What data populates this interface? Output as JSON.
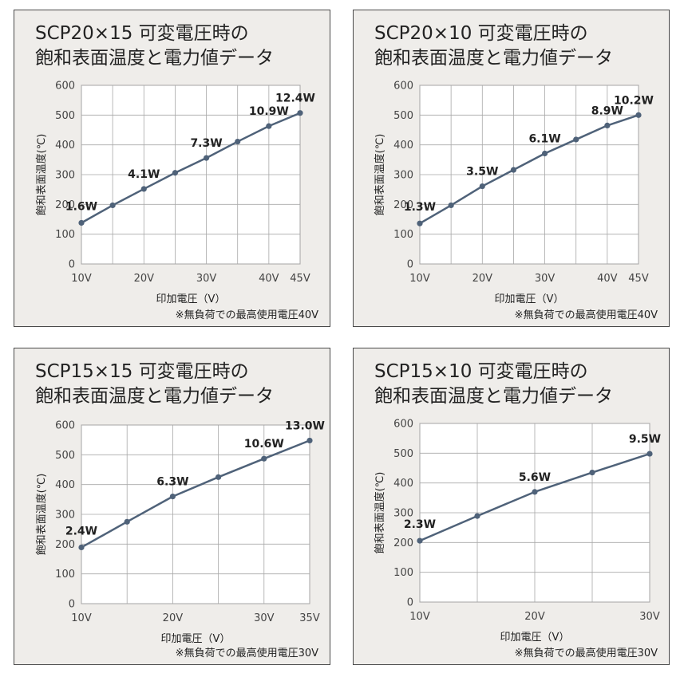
{
  "chart_data": [
    {
      "type": "line",
      "title": "SCP20×15 可変電圧時の\n飽和表面温度と電力値データ",
      "xlabel": "印加電圧（V）",
      "ylabel": "飽和表面温度(℃)",
      "note": "※無負荷での最高使用電圧40V",
      "xlim": [
        10,
        45
      ],
      "ylim": [
        0,
        600
      ],
      "xticks": [
        10,
        20,
        30,
        40,
        45
      ],
      "xtick_labels": [
        "10V",
        "20V",
        "30V",
        "40V",
        "45V"
      ],
      "yticks": [
        0,
        100,
        200,
        300,
        400,
        500,
        600
      ],
      "x": [
        10,
        15,
        20,
        25,
        30,
        35,
        40,
        45
      ],
      "y": [
        138,
        197,
        252,
        306,
        356,
        411,
        463,
        507
      ],
      "annotations": [
        {
          "x": 10,
          "text": "1.6W"
        },
        {
          "x": 20,
          "text": "4.1W"
        },
        {
          "x": 30,
          "text": "7.3W"
        },
        {
          "x": 40,
          "text": "10.9W"
        },
        {
          "x": 45,
          "text": "12.4W"
        }
      ],
      "line_color": "#4f6279"
    },
    {
      "type": "line",
      "title": "SCP20×10 可変電圧時の\n飽和表面温度と電力値データ",
      "xlabel": "印加電圧（V）",
      "ylabel": "飽和表面温度(℃)",
      "note": "※無負荷での最高使用電圧40V",
      "xlim": [
        10,
        45
      ],
      "ylim": [
        0,
        600
      ],
      "xticks": [
        10,
        20,
        30,
        40,
        45
      ],
      "xtick_labels": [
        "10V",
        "20V",
        "30V",
        "40V",
        "45V"
      ],
      "yticks": [
        0,
        100,
        200,
        300,
        400,
        500,
        600
      ],
      "x": [
        10,
        15,
        20,
        25,
        30,
        35,
        40,
        45
      ],
      "y": [
        136,
        197,
        261,
        316,
        371,
        418,
        465,
        500
      ],
      "annotations": [
        {
          "x": 10,
          "text": "1.3W"
        },
        {
          "x": 20,
          "text": "3.5W"
        },
        {
          "x": 30,
          "text": "6.1W"
        },
        {
          "x": 40,
          "text": "8.9W"
        },
        {
          "x": 45,
          "text": "10.2W"
        }
      ],
      "line_color": "#4f6279"
    },
    {
      "type": "line",
      "title": "SCP15×15 可変電圧時の\n飽和表面温度と電力値データ",
      "xlabel": "印加電圧（V）",
      "ylabel": "飽和表面温度(℃)",
      "note": "※無負荷での最高使用電圧30V",
      "xlim": [
        10,
        35
      ],
      "ylim": [
        0,
        600
      ],
      "xticks": [
        10,
        20,
        30,
        35
      ],
      "xtick_labels": [
        "10V",
        "20V",
        "30V",
        "35V"
      ],
      "yticks": [
        0,
        100,
        200,
        300,
        400,
        500,
        600
      ],
      "x": [
        10,
        15,
        20,
        25,
        30,
        35
      ],
      "y": [
        189,
        275,
        360,
        425,
        487,
        548
      ],
      "annotations": [
        {
          "x": 10,
          "text": "2.4W"
        },
        {
          "x": 20,
          "text": "6.3W"
        },
        {
          "x": 30,
          "text": "10.6W"
        },
        {
          "x": 35,
          "text": "13.0W"
        }
      ],
      "line_color": "#4f6279"
    },
    {
      "type": "line",
      "title": "SCP15×10 可変電圧時の\n飽和表面温度と電力値データ",
      "xlabel": "印加電圧（V）",
      "ylabel": "飽和表面温度(℃)",
      "note": "※無負荷での最高使用電圧30V",
      "xlim": [
        10,
        30
      ],
      "ylim": [
        0,
        600
      ],
      "xticks": [
        10,
        20,
        30
      ],
      "xtick_labels": [
        "10V",
        "20V",
        "30V"
      ],
      "yticks": [
        0,
        100,
        200,
        300,
        400,
        500,
        600
      ],
      "x": [
        10,
        15,
        20,
        25,
        30
      ],
      "y": [
        206,
        289,
        370,
        435,
        498
      ],
      "annotations": [
        {
          "x": 10,
          "text": "2.3W"
        },
        {
          "x": 20,
          "text": "5.6W"
        },
        {
          "x": 30,
          "text": "9.5W"
        }
      ],
      "line_color": "#4f6279"
    }
  ]
}
